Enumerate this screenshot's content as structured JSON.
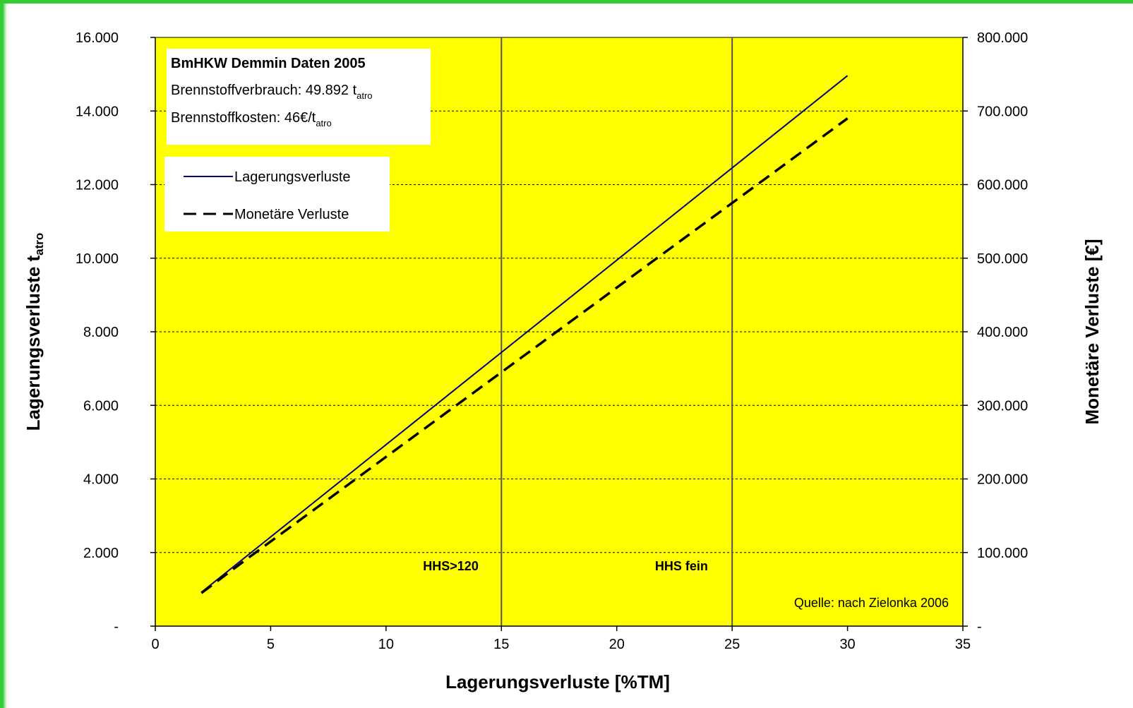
{
  "chart_data": {
    "type": "line",
    "xlabel": "Lagerungsverluste [%TM]",
    "ylabel": "Lagerungsverluste t",
    "ylabel_sub": "atro",
    "y2label": "Monetäre Verluste [€]",
    "xlim": [
      0,
      35
    ],
    "ylim": [
      0,
      16000
    ],
    "y2lim": [
      0,
      800000
    ],
    "x_ticks": [
      "0",
      "5",
      "10",
      "15",
      "20",
      "25",
      "30",
      "35"
    ],
    "y_ticks": [
      "-",
      "2.000",
      "4.000",
      "6.000",
      "8.000",
      "10.000",
      "12.000",
      "14.000",
      "16.000"
    ],
    "y2_ticks": [
      "-",
      "100.000",
      "200.000",
      "300.000",
      "400.000",
      "500.000",
      "600.000",
      "700.000",
      "800.000"
    ],
    "grid": "horizontal dashed",
    "background": "#ffff00",
    "series": [
      {
        "name": "Lagerungsverluste",
        "axis": "left",
        "color": "#000080",
        "style": "solid",
        "x": [
          2,
          30
        ],
        "y": [
          920,
          14960
        ]
      },
      {
        "name": "Monetäre Verluste",
        "axis": "right",
        "color": "#000000",
        "style": "dashed",
        "x": [
          2,
          4,
          6,
          8,
          10,
          12,
          14,
          16,
          18,
          20,
          22,
          24,
          26,
          28,
          30
        ],
        "y": [
          45000,
          92000,
          138000,
          184000,
          230000,
          276000,
          322000,
          368000,
          414000,
          460000,
          506000,
          552000,
          598000,
          644000,
          690000
        ]
      }
    ],
    "vertical_lines": [
      15,
      25
    ],
    "region_labels": [
      {
        "text": "HHS>120",
        "x": 12.5
      },
      {
        "text": "HHS fein",
        "x": 22.5
      }
    ],
    "info_box": {
      "title": "BmHKW Demmin Daten 2005",
      "line1_main": "Brennstoffverbrauch: 49.892 t",
      "line1_sub": "atro",
      "line2_main": "Brennstoffkosten: 46€/t",
      "line2_sub": "atro"
    },
    "legend": {
      "placement": "top-left",
      "entries": [
        "Lagerungsverluste",
        "Monetäre Verluste"
      ]
    },
    "source_note": "Quelle: nach Zielonka 2006"
  }
}
